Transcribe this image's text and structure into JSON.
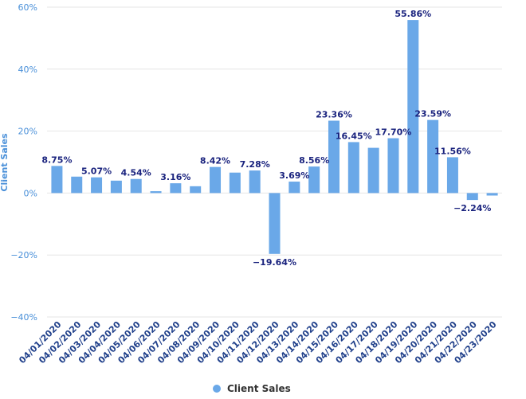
{
  "chart_data": {
    "type": "bar",
    "ylabel": "Client Sales",
    "xlabel": "",
    "title": "",
    "ylim": [
      -40,
      60
    ],
    "yticks": [
      "60%",
      "40%",
      "20%",
      "0%",
      "−20%",
      "−40%"
    ],
    "ytick_values": [
      60,
      40,
      20,
      0,
      -20,
      -40
    ],
    "grid": true,
    "legend_position": "bottom-center",
    "bar_color": "#6aa8e8",
    "categories": [
      "04/01/2020",
      "04/02/2020",
      "04/03/2020",
      "04/04/2020",
      "04/05/2020",
      "04/06/2020",
      "04/07/2020",
      "04/08/2020",
      "04/09/2020",
      "04/10/2020",
      "04/11/2020",
      "04/12/2020",
      "04/13/2020",
      "04/14/2020",
      "04/15/2020",
      "04/16/2020",
      "04/17/2020",
      "04/18/2020",
      "04/19/2020",
      "04/20/2020",
      "04/21/2020",
      "04/22/2020",
      "04/23/2020"
    ],
    "series": [
      {
        "name": "Client Sales",
        "values": [
          8.75,
          5.3,
          5.07,
          4.0,
          4.54,
          0.6,
          3.16,
          2.2,
          8.42,
          6.6,
          7.28,
          -19.64,
          3.69,
          8.56,
          23.36,
          16.45,
          14.6,
          17.7,
          55.86,
          23.59,
          11.56,
          -2.24,
          -0.8
        ],
        "labels": [
          "8.75%",
          "",
          "5.07%",
          "",
          "4.54%",
          "",
          "3.16%",
          "",
          "8.42%",
          "",
          "7.28%",
          "−19.64%",
          "3.69%",
          "8.56%",
          "23.36%",
          "16.45%",
          "",
          "17.70%",
          "55.86%",
          "23.59%",
          "11.56%",
          "−2.24%",
          ""
        ]
      }
    ]
  }
}
